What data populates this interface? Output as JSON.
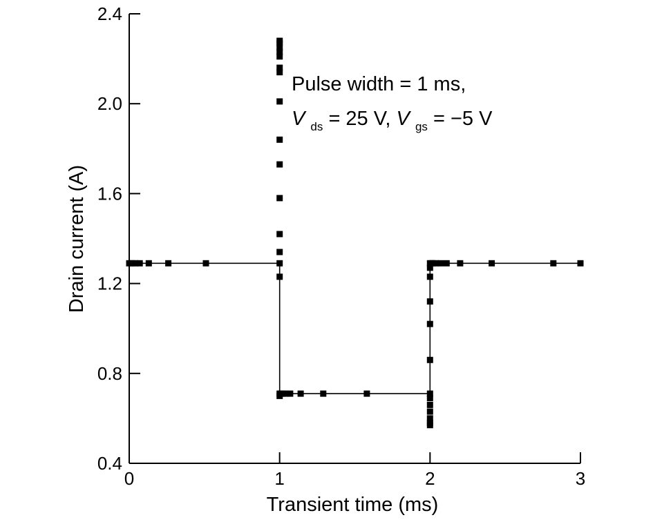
{
  "chart_data": {
    "type": "line",
    "title": "",
    "xlabel": "Transient time (ms)",
    "ylabel": "Drain current (A)",
    "xlim": [
      0,
      3
    ],
    "ylim": [
      0.4,
      2.4
    ],
    "x_ticks": [
      "0",
      "1",
      "2",
      "3"
    ],
    "y_ticks": [
      "0.4",
      "0.8",
      "1.2",
      "1.6",
      "2.0",
      "2.4"
    ],
    "grid": false,
    "annotation": {
      "line1": "Pulse width = 1 ms,",
      "v1": "V",
      "v1_sub": "ds",
      "v1_rest": " = 25 V, ",
      "v2": "V",
      "v2_sub": "gs",
      "v2_rest": " = −5 V"
    },
    "series": [
      {
        "name": "Drain current",
        "line": [
          [
            0,
            1.29
          ],
          [
            1.0,
            1.29
          ],
          [
            1.0,
            0.71
          ],
          [
            2.0,
            0.71
          ],
          [
            2.0,
            1.29
          ],
          [
            3.0,
            1.29
          ]
        ],
        "markers": [
          [
            0.0,
            1.29
          ],
          [
            0.02,
            1.29
          ],
          [
            0.04,
            1.29
          ],
          [
            0.07,
            1.29
          ],
          [
            0.13,
            1.29
          ],
          [
            0.26,
            1.29
          ],
          [
            0.51,
            1.29
          ],
          [
            1.0,
            1.29
          ],
          [
            1.0,
            1.23
          ],
          [
            1.0,
            1.34
          ],
          [
            1.0,
            1.42
          ],
          [
            1.0,
            1.58
          ],
          [
            1.0,
            1.73
          ],
          [
            1.0,
            1.84
          ],
          [
            1.0,
            2.01
          ],
          [
            1.0,
            2.14
          ],
          [
            1.0,
            2.16
          ],
          [
            1.0,
            2.21
          ],
          [
            1.0,
            2.23
          ],
          [
            1.0,
            2.25
          ],
          [
            1.0,
            2.27
          ],
          [
            1.0,
            2.28
          ],
          [
            1.0,
            0.71
          ],
          [
            1.0,
            0.7
          ],
          [
            1.01,
            0.71
          ],
          [
            1.02,
            0.71
          ],
          [
            1.04,
            0.71
          ],
          [
            1.07,
            0.71
          ],
          [
            1.14,
            0.71
          ],
          [
            1.29,
            0.71
          ],
          [
            1.58,
            0.71
          ],
          [
            2.0,
            0.71
          ],
          [
            2.0,
            0.69
          ],
          [
            2.0,
            0.66
          ],
          [
            2.0,
            0.63
          ],
          [
            2.0,
            0.6
          ],
          [
            2.0,
            0.58
          ],
          [
            2.0,
            0.57
          ],
          [
            2.0,
            0.86
          ],
          [
            2.0,
            1.02
          ],
          [
            2.0,
            1.12
          ],
          [
            2.0,
            1.23
          ],
          [
            2.0,
            1.27
          ],
          [
            2.0,
            1.29
          ],
          [
            2.01,
            1.29
          ],
          [
            2.02,
            1.29
          ],
          [
            2.04,
            1.29
          ],
          [
            2.07,
            1.29
          ],
          [
            2.11,
            1.29
          ],
          [
            2.2,
            1.29
          ],
          [
            2.41,
            1.29
          ],
          [
            2.82,
            1.29
          ],
          [
            3.0,
            1.29
          ]
        ]
      }
    ]
  }
}
